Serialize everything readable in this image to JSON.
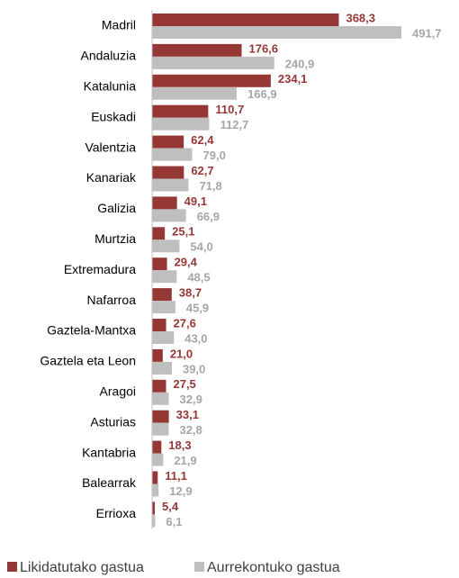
{
  "chart_data": {
    "type": "bar",
    "orientation": "horizontal",
    "categories": [
      "Madril",
      "Andaluzia",
      "Katalunia",
      "Euskadi",
      "Valentzia",
      "Kanariak",
      "Galizia",
      "Murtzia",
      "Extremadura",
      "Nafarroa",
      "Gaztela-Mantxa",
      "Gaztela eta Leon",
      "Aragoi",
      "Asturias",
      "Kantabria",
      "Balearrak",
      "Errioxa"
    ],
    "series": [
      {
        "name": "Likidatutako gastua",
        "color": "#953735",
        "values": [
          368.3,
          176.6,
          234.1,
          110.7,
          62.4,
          62.7,
          49.1,
          25.1,
          29.4,
          38.7,
          27.6,
          21.0,
          27.5,
          33.1,
          18.3,
          11.1,
          5.4
        ],
        "value_labels": [
          "368,3",
          "176,6",
          "234,1",
          "110,7",
          "62,4",
          "62,7",
          "49,1",
          "25,1",
          "29,4",
          "38,7",
          "27,6",
          "21,0",
          "27,5",
          "33,1",
          "18,3",
          "11,1",
          "5,4"
        ]
      },
      {
        "name": "Aurrekontuko gastua",
        "color": "#bfbfbf",
        "values": [
          491.7,
          240.9,
          166.9,
          112.7,
          79.0,
          71.8,
          66.9,
          54.0,
          48.5,
          45.9,
          43.0,
          39.0,
          32.9,
          32.8,
          21.9,
          12.9,
          6.1
        ],
        "value_labels": [
          "491,7",
          "240,9",
          "166,9",
          "112,7",
          "79,0",
          "71,8",
          "66,9",
          "54,0",
          "48,5",
          "45,9",
          "43,0",
          "39,0",
          "32,9",
          "32,8",
          "21,9",
          "12,9",
          "6,1"
        ]
      }
    ],
    "legend": "bottom"
  }
}
